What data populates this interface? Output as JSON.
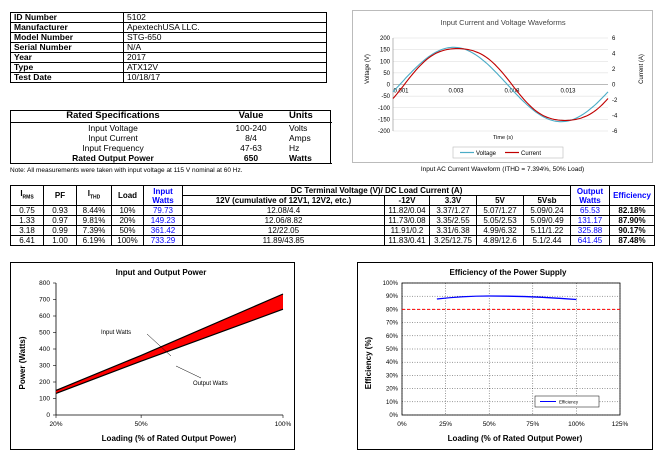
{
  "id_table": [
    {
      "key": "ID Number",
      "value": "5102"
    },
    {
      "key": "Manufacturer",
      "value": "ApextechUSA LLC."
    },
    {
      "key": "Model Number",
      "value": "STG-650"
    },
    {
      "key": "Serial Number",
      "value": "N/A"
    },
    {
      "key": "Year",
      "value": "2017"
    },
    {
      "key": "Type",
      "value": "ATX12V"
    },
    {
      "key": "Test Date",
      "value": "10/18/17"
    }
  ],
  "rated": {
    "headers": [
      "Rated Specifications",
      "Value",
      "Units"
    ],
    "rows": [
      {
        "label": "Input Voltage",
        "value": "100-240",
        "unit": "Volts"
      },
      {
        "label": "Input Current",
        "value": "8/4",
        "unit": "Amps"
      },
      {
        "label": "Input Frequency",
        "value": "47-63",
        "unit": "Hz"
      },
      {
        "label": "Rated Output Power",
        "value": "650",
        "unit": "Watts"
      }
    ],
    "note": "Note: All measurements were taken with input voltage at 115 V nominal at 60 Hz."
  },
  "waveform": {
    "title": "Input Current and Voltage Waveforms",
    "ylabel_left": "Voltage (V)",
    "ylabel_right": "Current (A)",
    "xlabel": "Time (s)",
    "left_ticks": [
      "200",
      "150",
      "100",
      "50",
      "0",
      "-50",
      "-100",
      "-150",
      "-200"
    ],
    "right_ticks": [
      "6",
      "4",
      "2",
      "0",
      "-2",
      "-4",
      "-6"
    ],
    "x_ticks": [
      "0.001",
      "0.003",
      "0.008",
      "0.013"
    ],
    "legend": [
      "Voltage",
      "Current"
    ],
    "caption": "Input AC Current Waveform (ITHD = 7.394%, 50% Load)",
    "colors": {
      "voltage": "#4bacc6",
      "current": "#c00000"
    }
  },
  "data_table": {
    "h_irms": "I",
    "h_irms_sub": "RMS",
    "h_pf": "PF",
    "h_ithd": "I",
    "h_ithd_sub": "THD",
    "h_load": "Load",
    "h_input": "Input Watts",
    "h_dc": "DC Terminal Voltage (V)/ DC Load Current (A)",
    "h_output": "Output Watts",
    "h_eff": "Efficiency",
    "sub": [
      "12V (cumulative of 12V1, 12V2, etc.)",
      "-12V",
      "3.3V",
      "5V",
      "5Vsb"
    ],
    "rows": [
      [
        "0.75",
        "0.93",
        "8.44%",
        "10%",
        "79.73",
        "12.08/4.4",
        "11.82/0.04",
        "3.37/1.27",
        "5.07/1.27",
        "5.09/0.24",
        "65.53",
        "82.18%"
      ],
      [
        "1.33",
        "0.97",
        "9.81%",
        "20%",
        "149.23",
        "12.06/8.82",
        "11.73/0.08",
        "3.35/2.55",
        "5.05/2.53",
        "5.09/0.49",
        "131.17",
        "87.90%"
      ],
      [
        "3.18",
        "0.99",
        "7.39%",
        "50%",
        "361.42",
        "12/22.05",
        "11.91/0.2",
        "3.31/6.38",
        "4.99/6.32",
        "5.11/1.22",
        "325.88",
        "90.17%"
      ],
      [
        "6.41",
        "1.00",
        "6.19%",
        "100%",
        "733.29",
        "11.89/43.85",
        "11.83/0.41",
        "3.25/12.75",
        "4.89/12.6",
        "5.1/2.44",
        "641.45",
        "87.48%"
      ]
    ]
  },
  "chart_data": [
    {
      "type": "area",
      "title": "Input and Output Power",
      "xlabel": "Loading (% of Rated Output Power)",
      "ylabel": "Power (Watts)",
      "x": [
        "20%",
        "50%",
        "100%"
      ],
      "xlim": [
        20,
        100
      ],
      "ylim": [
        0,
        800
      ],
      "yticks": [
        "0",
        "100",
        "200",
        "300",
        "400",
        "500",
        "600",
        "700",
        "800"
      ],
      "series": [
        {
          "name": "Input Watts",
          "values": [
            149.23,
            361.42,
            733.29
          ]
        },
        {
          "name": "Output Watts",
          "values": [
            131.17,
            325.88,
            641.45
          ]
        }
      ],
      "annotations": [
        "Input Watts",
        "Output Watts"
      ],
      "fill_color": "#ff0000"
    },
    {
      "type": "line",
      "title": "Efficiency of the Power Supply",
      "xlabel": "Loading (% of Rated Output Power)",
      "ylabel": "Efficiency (%)",
      "xticks": [
        "0%",
        "25%",
        "50%",
        "75%",
        "100%",
        "125%"
      ],
      "yticks": [
        "0%",
        "10%",
        "20%",
        "30%",
        "40%",
        "50%",
        "60%",
        "70%",
        "80%",
        "90%",
        "100%"
      ],
      "xlim": [
        0,
        125
      ],
      "ylim": [
        0,
        100
      ],
      "series": [
        {
          "name": "Efficiency",
          "x": [
            20,
            50,
            100
          ],
          "values": [
            87.9,
            90.17,
            87.48
          ]
        }
      ],
      "threshold": 80,
      "colors": {
        "line": "#0000ff",
        "threshold": "#ff0000"
      }
    }
  ]
}
